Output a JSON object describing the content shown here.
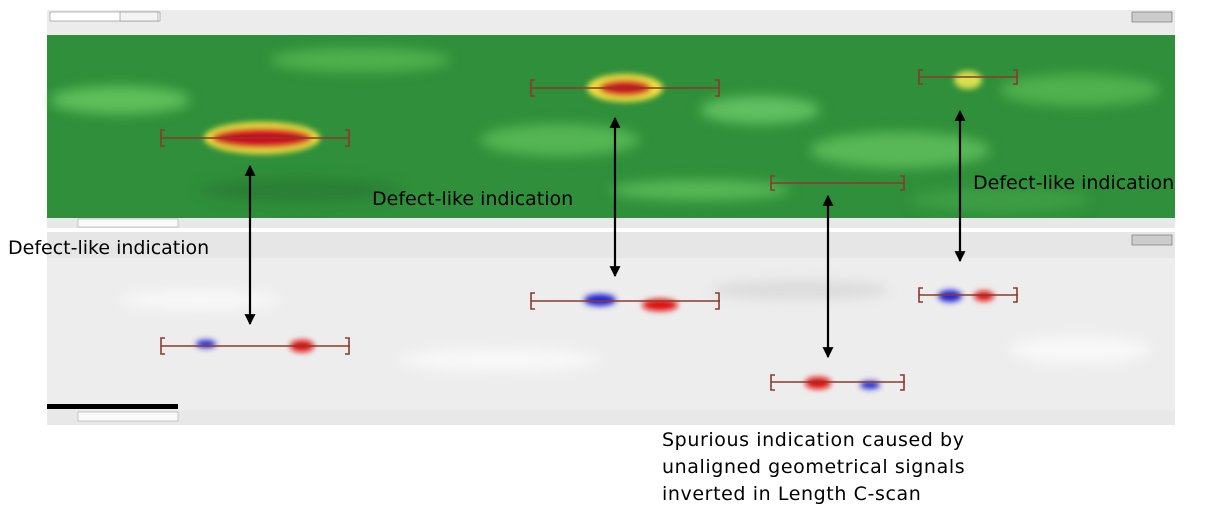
{
  "annotations": [
    {
      "label": "Defect-like indication"
    },
    {
      "label": "Defect-like indication"
    },
    {
      "label": "Defect-like indication"
    }
  ],
  "spurious_note": {
    "lines": [
      "Spurious indication caused by",
      "unaligned geometrical signals",
      "inverted in Length C-scan"
    ]
  }
}
